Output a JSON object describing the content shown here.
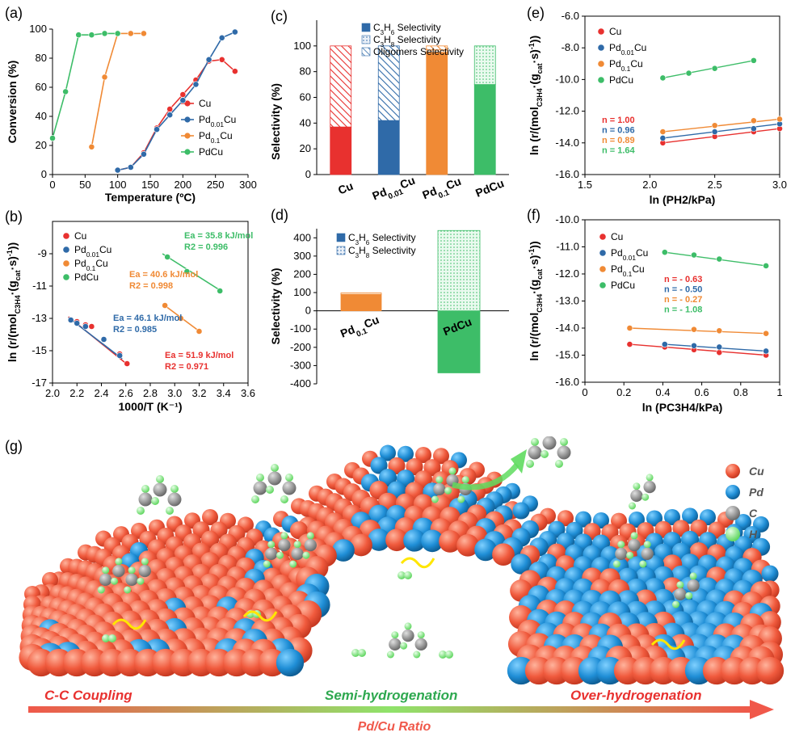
{
  "colors": {
    "Cu": "#e8312f",
    "PdCu001": "#2f6aa8",
    "PdCu01": "#f08a35",
    "PdCu": "#3dbd68",
    "black": "#000000"
  },
  "panels": [
    {
      "label": "(a)"
    },
    {
      "label": "(b)"
    },
    {
      "label": "(c)"
    },
    {
      "label": "(d)"
    },
    {
      "label": "(e)"
    },
    {
      "label": "(f)"
    },
    {
      "label": "(g)"
    }
  ],
  "chart_data": [
    {
      "id": "a",
      "type": "line",
      "xlabel": "Temperature (ºC)",
      "ylabel": "Conversion (%)",
      "xlim": [
        0,
        300
      ],
      "ylim": [
        0,
        100
      ],
      "xticks": [
        "0",
        "50",
        "100",
        "150",
        "200",
        "250",
        "300"
      ],
      "yticks": [
        "0",
        "20",
        "40",
        "60",
        "80",
        "100"
      ],
      "legend_position": "right",
      "series": [
        {
          "name": "Cu",
          "color": "Cu",
          "x": [
            100,
            120,
            140,
            160,
            180,
            200,
            220,
            240,
            260,
            280
          ],
          "y": [
            3,
            5,
            15,
            32,
            45,
            55,
            65,
            78,
            79,
            71
          ]
        },
        {
          "name": "Pd0.01Cu",
          "color": "PdCu001",
          "x": [
            100,
            120,
            140,
            160,
            180,
            200,
            220,
            240,
            260,
            280
          ],
          "y": [
            3,
            5,
            14,
            31,
            41,
            51,
            62,
            79,
            94,
            98
          ]
        },
        {
          "name": "Pd0.1Cu",
          "color": "PdCu01",
          "x": [
            60,
            80,
            100,
            120,
            140
          ],
          "y": [
            19,
            67,
            97,
            97,
            97
          ]
        },
        {
          "name": "PdCu",
          "color": "PdCu",
          "x": [
            0,
            20,
            40,
            60,
            80,
            100
          ],
          "y": [
            25,
            57,
            96,
            96,
            97,
            97
          ]
        }
      ]
    },
    {
      "id": "b",
      "type": "scatter",
      "xlabel": "1000/T (K⁻¹)",
      "ylabel": "ln (r/(mol·(g·s)⁻¹))",
      "xlim": [
        2.0,
        3.6
      ],
      "ylim": [
        -17,
        -7
      ],
      "xticks": [
        "2.0",
        "2.2",
        "2.4",
        "2.6",
        "2.8",
        "3.0",
        "3.2",
        "3.4",
        "3.6"
      ],
      "yticks": [
        "-17",
        "-15",
        "-13",
        "-11",
        "-9"
      ],
      "legend_position": "top-left",
      "series": [
        {
          "name": "Cu",
          "color": "Cu",
          "x": [
            2.15,
            2.2,
            2.27,
            2.32,
            2.42,
            2.55,
            2.61
          ],
          "y": [
            -13.1,
            -13.2,
            -13.4,
            -13.5,
            -14.3,
            -15.2,
            -15.8
          ],
          "fit": [
            [
              2.13,
              -12.9
            ],
            [
              2.62,
              -15.9
            ]
          ]
        },
        {
          "name": "Pd0.01Cu",
          "color": "PdCu001",
          "x": [
            2.15,
            2.2,
            2.27,
            2.42,
            2.55
          ],
          "y": [
            -13.1,
            -13.3,
            -13.5,
            -14.3,
            -15.3
          ],
          "fit": [
            [
              2.13,
              -12.95
            ],
            [
              2.57,
              -15.5
            ]
          ]
        },
        {
          "name": "Pd0.1Cu",
          "color": "PdCu01",
          "x": [
            2.92,
            3.05,
            3.2
          ],
          "y": [
            -12.2,
            -13.0,
            -13.8
          ],
          "fit": [
            [
              2.9,
              -12.1
            ],
            [
              3.22,
              -13.9
            ]
          ]
        },
        {
          "name": "PdCu",
          "color": "PdCu",
          "x": [
            2.94,
            3.1,
            3.37
          ],
          "y": [
            -9.2,
            -10.1,
            -11.3
          ],
          "fit": [
            [
              2.9,
              -9.0
            ],
            [
              3.39,
              -11.35
            ]
          ]
        }
      ],
      "annotations": [
        {
          "ea": "Ea = 35.8 kJ/mol",
          "r2": "R2 = 0.996",
          "color": "PdCu"
        },
        {
          "ea": "Ea = 40.6 kJ/mol",
          "r2": "R2 = 0.998",
          "color": "PdCu01"
        },
        {
          "ea": "Ea = 46.1 kJ/mol",
          "r2": "R2 = 0.985",
          "color": "PdCu001"
        },
        {
          "ea": "Ea = 51.9 kJ/mol",
          "r2": "R2 = 0.971",
          "color": "Cu"
        }
      ]
    },
    {
      "id": "c",
      "type": "bar",
      "stacked": true,
      "ylabel": "Selectivity (%)",
      "ylim": [
        0,
        100
      ],
      "yticks": [
        "0",
        "20",
        "40",
        "60",
        "80",
        "100"
      ],
      "categories": [
        "Cu",
        "Pd0.01Cu",
        "Pd0.1Cu",
        "PdCu"
      ],
      "colors": [
        "Cu",
        "PdCu001",
        "PdCu01",
        "PdCu"
      ],
      "series": [
        {
          "name": "C3H6 Selectivity",
          "pattern": "solid",
          "values": [
            37,
            42,
            95,
            70
          ]
        },
        {
          "name": "C3H8 Selectivity",
          "pattern": "dots",
          "values": [
            0,
            0,
            2,
            30
          ]
        },
        {
          "name": "Oligomers Selectivity",
          "pattern": "hatch",
          "values": [
            63,
            58,
            3,
            0
          ]
        }
      ],
      "legend_position": "top"
    },
    {
      "id": "d",
      "type": "bar",
      "ylabel": "Selectivity (%)",
      "ylim": [
        -400,
        450
      ],
      "yticks": [
        "-400",
        "-300",
        "-200",
        "-100",
        "0",
        "100",
        "200",
        "300",
        "400"
      ],
      "categories": [
        "Pd0.1Cu",
        "PdCu"
      ],
      "colors": [
        "PdCu01",
        "PdCu"
      ],
      "series": [
        {
          "name": "C3H6 Selectivity",
          "pattern": "solid",
          "values": [
            90,
            -340
          ]
        },
        {
          "name": "C3H8 Selectivity",
          "pattern": "dots",
          "values": [
            8,
            440
          ]
        }
      ],
      "legend_position": "top-right"
    },
    {
      "id": "e",
      "type": "scatter",
      "xlabel": "ln (PH2/kPa)",
      "ylabel": "ln (r/(mol·(g·s)⁻¹))",
      "xlim": [
        1.5,
        3.0
      ],
      "ylim": [
        -16,
        -6
      ],
      "xticks": [
        "1.5",
        "2.0",
        "2.5",
        "3.0"
      ],
      "yticks": [
        "-16.0",
        "-14.0",
        "-12.0",
        "-10.0",
        "-8.0",
        "-6.0"
      ],
      "series": [
        {
          "name": "Cu",
          "color": "Cu",
          "x": [
            2.1,
            2.5,
            2.8,
            3.0
          ],
          "y": [
            -14.0,
            -13.6,
            -13.3,
            -13.1
          ]
        },
        {
          "name": "Pd0.01Cu",
          "color": "PdCu001",
          "x": [
            2.1,
            2.5,
            2.8,
            3.0
          ],
          "y": [
            -13.7,
            -13.3,
            -13.1,
            -12.8
          ]
        },
        {
          "name": "Pd0.1Cu",
          "color": "PdCu01",
          "x": [
            2.1,
            2.5,
            2.8,
            3.0
          ],
          "y": [
            -13.3,
            -12.9,
            -12.6,
            -12.5
          ]
        },
        {
          "name": "PdCu",
          "color": "PdCu",
          "x": [
            2.1,
            2.3,
            2.5,
            2.8
          ],
          "y": [
            -9.9,
            -9.6,
            -9.3,
            -8.8
          ]
        }
      ],
      "orders": [
        {
          "text": "n = 1.00",
          "color": "Cu"
        },
        {
          "text": "n = 0.96",
          "color": "PdCu001"
        },
        {
          "text": "n = 0.89",
          "color": "PdCu01"
        },
        {
          "text": "n = 1.64",
          "color": "PdCu"
        }
      ]
    },
    {
      "id": "f",
      "type": "scatter",
      "xlabel": "ln (PC3H4/kPa)",
      "ylabel": "ln (r/(mol·(g·s)⁻¹))",
      "xlim": [
        0,
        1
      ],
      "ylim": [
        -16,
        -10
      ],
      "xticks": [
        "0",
        "0.2",
        "0.4",
        "0.6",
        "0.8",
        "1"
      ],
      "yticks": [
        "-16.0",
        "-15.0",
        "-14.0",
        "-13.0",
        "-12.0",
        "-11.0",
        "-10.0"
      ],
      "series": [
        {
          "name": "Cu",
          "color": "Cu",
          "x": [
            0.23,
            0.41,
            0.56,
            0.69,
            0.93
          ],
          "y": [
            -14.6,
            -14.7,
            -14.8,
            -14.9,
            -15.0
          ]
        },
        {
          "name": "Pd0.01Cu",
          "color": "PdCu001",
          "x": [
            0.41,
            0.56,
            0.69,
            0.93
          ],
          "y": [
            -14.6,
            -14.65,
            -14.7,
            -14.85
          ]
        },
        {
          "name": "Pd0.1Cu",
          "color": "PdCu01",
          "x": [
            0.23,
            0.56,
            0.69,
            0.93
          ],
          "y": [
            -14.0,
            -14.05,
            -14.1,
            -14.2
          ]
        },
        {
          "name": "PdCu",
          "color": "PdCu",
          "x": [
            0.41,
            0.56,
            0.69,
            0.93
          ],
          "y": [
            -11.2,
            -11.3,
            -11.45,
            -11.7
          ]
        }
      ],
      "orders": [
        {
          "text": "n = - 0.63",
          "color": "Cu"
        },
        {
          "text": "n = - 0.50",
          "color": "PdCu001"
        },
        {
          "text": "n = - 0.27",
          "color": "PdCu01"
        },
        {
          "text": "n = - 1.08",
          "color": "PdCu"
        }
      ]
    }
  ],
  "illustration": {
    "legend": [
      {
        "label": "Cu",
        "color": "#f06a4f"
      },
      {
        "label": "Pd",
        "color": "#2a8fd0"
      },
      {
        "label": "C",
        "color": "#8a8a8a"
      },
      {
        "label": "H",
        "color": "#8ef08e"
      }
    ],
    "captions": {
      "left": "C-C Coupling",
      "middle": "Semi-hydrogenation",
      "right": "Over-hydrogenation",
      "arrow": "Pd/Cu Ratio"
    }
  }
}
